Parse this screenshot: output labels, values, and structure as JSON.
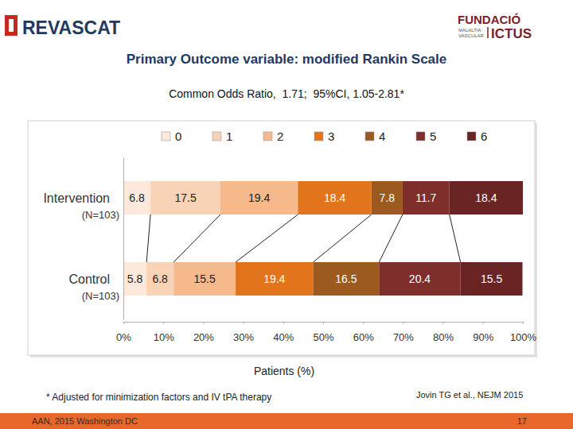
{
  "slide": {
    "logo_left": "REVASCAT",
    "logo_right": [
      "FUNDACIÓ",
      "MALALTIA",
      "VASCULAR",
      "ICTUS"
    ],
    "footer_left": "AAN, 2015 Washington DC",
    "page": "17"
  },
  "chart_data": {
    "type": "bar",
    "orientation": "horizontal",
    "stacked": true,
    "data_labels": true,
    "title": "Primary Outcome variable: modified Rankin Scale",
    "subtitle": "Common Odds Ratio,  1.71;  95%CI, 1.05-2.81*",
    "xlabel": "Patients (%)",
    "footnote": "* Adjusted for minimization factors and IV tPA therapy",
    "citation": "Jovin TG et al., NEJM 2015",
    "categories": [
      "Intervention",
      "Control"
    ],
    "category_sublabels": [
      "(N=103)",
      "(N=103)"
    ],
    "legend": "top",
    "xlim": [
      0,
      100
    ],
    "xticks": [
      {
        "value": 0,
        "label": "0%"
      },
      {
        "value": 10,
        "label": "10%"
      },
      {
        "value": 20,
        "label": "20%"
      },
      {
        "value": 30,
        "label": "30%"
      },
      {
        "value": 40,
        "label": "40%"
      },
      {
        "value": 50,
        "label": "50%"
      },
      {
        "value": 60,
        "label": "60%"
      },
      {
        "value": 70,
        "label": "70%"
      },
      {
        "value": 80,
        "label": "80%"
      },
      {
        "value": 90,
        "label": "90%"
      },
      {
        "value": 100,
        "label": "100%"
      }
    ],
    "series": [
      {
        "name": "0",
        "color": "#fde9dc",
        "values": [
          6.8,
          5.8
        ]
      },
      {
        "name": "1",
        "color": "#f9d3b6",
        "values": [
          17.5,
          6.8
        ]
      },
      {
        "name": "2",
        "color": "#f6b98c",
        "values": [
          19.4,
          15.5
        ]
      },
      {
        "name": "3",
        "color": "#e2741c",
        "values": [
          18.4,
          19.4
        ]
      },
      {
        "name": "4",
        "color": "#9c5a1e",
        "values": [
          7.8,
          16.5
        ]
      },
      {
        "name": "5",
        "color": "#7e2f2b",
        "values": [
          11.7,
          20.4
        ]
      },
      {
        "name": "6",
        "color": "#6a2424",
        "values": [
          18.4,
          15.5
        ]
      }
    ]
  }
}
